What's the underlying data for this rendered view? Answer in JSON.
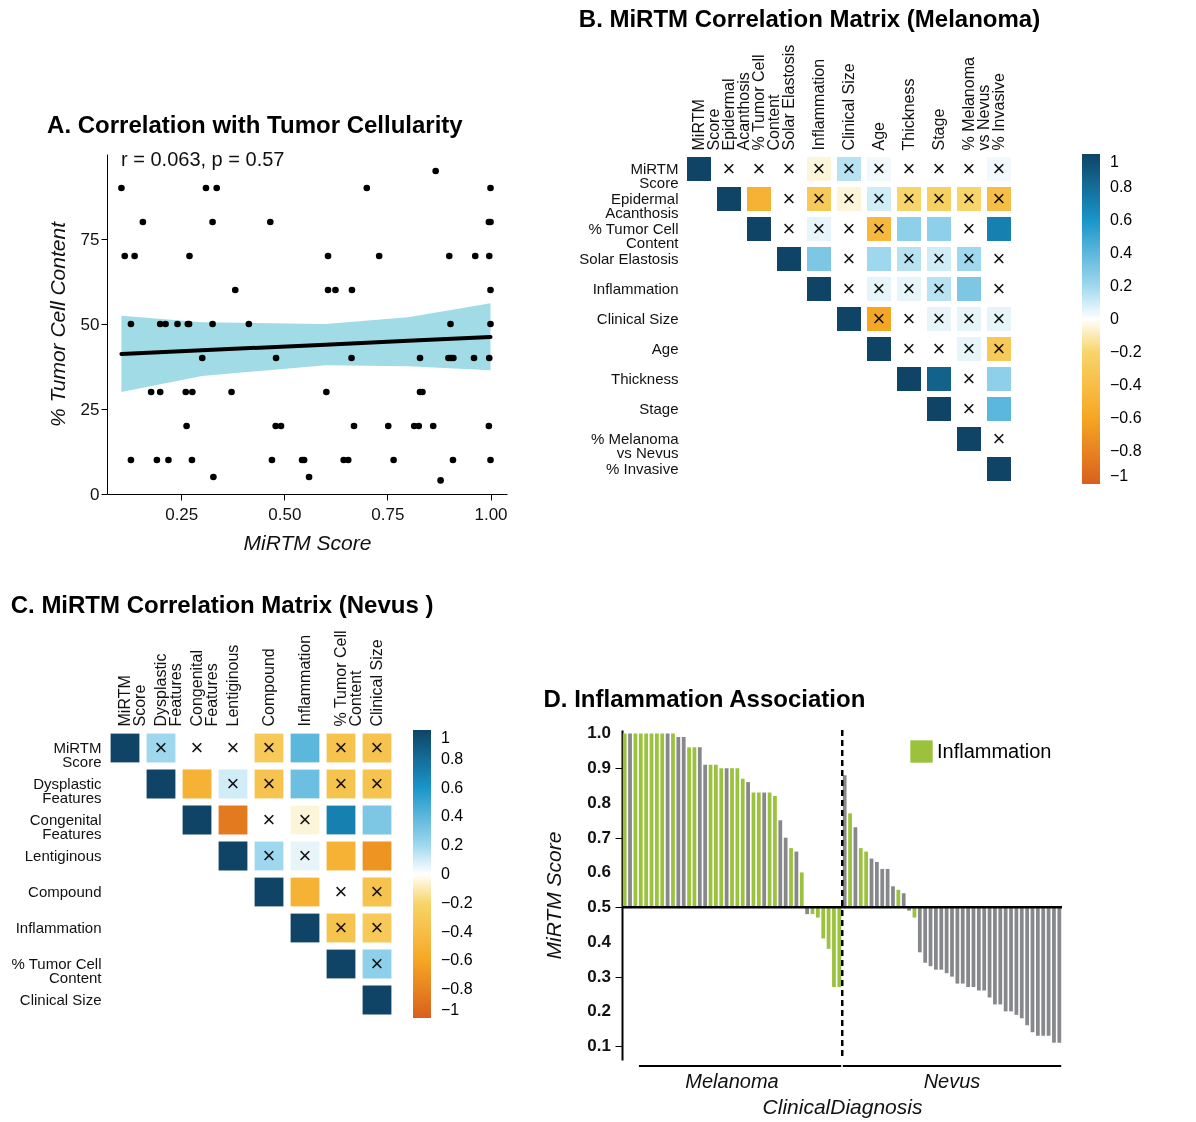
{
  "chart_data": [
    {
      "type": "scatter",
      "title": "A. Correlation with Tumor Cellularity",
      "xlabel": "MiRTM Score",
      "ylabel": "% Tumor Cell Content",
      "annotations": [
        "r = 0.063, p = 0.57"
      ],
      "xlim": [
        0.07,
        1.04
      ],
      "ylim": [
        0,
        100
      ],
      "xticks": [
        0.25,
        {
          "value": 0.5,
          "label": "0.50"
        },
        0.75,
        {
          "value": 1,
          "label": "1.00"
        }
      ],
      "yticks": [
        0,
        25,
        50,
        75
      ],
      "series": [
        {
          "type": "scatter",
          "color": "#000000",
          "marker": "circle",
          "x": [
            0.105,
            0.31,
            0.336,
            0.7,
            1.0,
            0.867,
            0.157,
            0.326,
            0.466,
            0.996,
            1.0,
            0.113,
            0.137,
            0.27,
            0.606,
            0.73,
            0.9,
            0.963,
            0.997,
            0.381,
            0.606,
            0.624,
            0.664,
            1.0,
            0.128,
            0.199,
            0.212,
            0.241,
            0.266,
            0.269,
            0.326,
            0.414,
            0.903,
            1.0,
            0.301,
            0.48,
            0.663,
            0.829,
            0.898,
            0.904,
            0.91,
            0.96,
            0.997,
            0.177,
            0.199,
            0.261,
            0.277,
            0.372,
            0.602,
            0.829,
            0.835,
            0.263,
            0.479,
            0.492,
            0.669,
            0.752,
            0.815,
            0.826,
            0.861,
            0.996,
            0.128,
            0.191,
            0.219,
            0.276,
            0.47,
            0.543,
            0.548,
            0.644,
            0.655,
            0.765,
            0.909,
            1.0,
            0.328,
            0.56,
            0.879
          ],
          "values": [
            90,
            90,
            90,
            90,
            90,
            95,
            80,
            80,
            80,
            80,
            80,
            70,
            70,
            70,
            70,
            70,
            70,
            70,
            70,
            60,
            60,
            60,
            60,
            60,
            50,
            50,
            50,
            50,
            50,
            50,
            50,
            50,
            50,
            50,
            40,
            40,
            40,
            40,
            40,
            40,
            40,
            40,
            40,
            30,
            30,
            30,
            30,
            30,
            30,
            30,
            30,
            20,
            20,
            20,
            20,
            20,
            20,
            20,
            20,
            20,
            10,
            10,
            10,
            10,
            10,
            10,
            10,
            10,
            10,
            10,
            10,
            10,
            5,
            5,
            4
          ]
        },
        {
          "type": "line",
          "color": "#000000",
          "x": [
            0.105,
            0.3,
            0.6,
            0.8,
            1.0
          ],
          "values": [
            41.2,
            42.3,
            43.9,
            45.1,
            46.2
          ],
          "lower": [
            30,
            34.7,
            37.9,
            37.6,
            36.4
          ],
          "upper": [
            52.4,
            50.5,
            50,
            52,
            56.1
          ]
        }
      ]
    },
    {
      "type": "heatmap",
      "title": "B. MiRTM Correlation Matrix (Melanoma)",
      "categories": [
        "MiRTM\nScore",
        "Epidermal\nAcanthosis",
        "% Tumor Cell\nContent",
        "Solar Elastosis",
        "Inflammation",
        "Clinical Size",
        "Age",
        "Thickness",
        "Stage",
        "% Melanoma\nvs Nevus",
        "% Invasive"
      ],
      "y_categories": [
        "MiRTM\nScore",
        "Epidermal\nAcanthosis",
        "% Tumor Cell\nContent",
        "Solar Elastosis",
        "Inflammation",
        "Clinical Size",
        "Age",
        "Thickness",
        "Stage",
        "% Melanoma\nvs Nevus",
        "% Invasive"
      ],
      "clim": [
        -1,
        1
      ],
      "cticks": [
        1,
        0.8,
        0.6,
        0.4,
        0.2,
        0,
        {
          "value": -0.2,
          "label": "−0.2"
        },
        {
          "value": -0.4,
          "label": "−0.4"
        },
        {
          "value": -0.6,
          "label": "−0.6"
        },
        {
          "value": -0.8,
          "label": "−0.8"
        },
        {
          "value": -1,
          "label": "−1"
        }
      ],
      "cells": [
        [
          1,
          0,
          0,
          0,
          -0.05,
          0.15,
          0.03,
          0,
          0,
          0,
          0.03
        ],
        [
          null,
          1,
          -0.5,
          0,
          -0.3,
          -0.05,
          0.1,
          -0.2,
          -0.25,
          -0.2,
          -0.4
        ],
        [
          null,
          null,
          1,
          0,
          0.05,
          0,
          -0.45,
          0.25,
          0.25,
          0,
          0.7
        ],
        [
          null,
          null,
          null,
          1,
          0.3,
          0,
          0.2,
          0.15,
          0.1,
          0.2,
          0
        ],
        [
          null,
          null,
          null,
          null,
          1,
          0,
          0.05,
          0.05,
          0.15,
          0.3,
          0
        ],
        [
          null,
          null,
          null,
          null,
          null,
          1,
          -0.6,
          0,
          0.05,
          0.05,
          0.05
        ],
        [
          null,
          null,
          null,
          null,
          null,
          null,
          1,
          0,
          0,
          0.05,
          -0.3
        ],
        [
          null,
          null,
          null,
          null,
          null,
          null,
          null,
          1,
          0.85,
          0,
          0.25
        ],
        [
          null,
          null,
          null,
          null,
          null,
          null,
          null,
          null,
          1,
          0,
          0.4
        ],
        [
          null,
          null,
          null,
          null,
          null,
          null,
          null,
          null,
          null,
          1,
          0
        ],
        [
          null,
          null,
          null,
          null,
          null,
          null,
          null,
          null,
          null,
          null,
          1
        ]
      ],
      "cell_labels": [
        [
          null,
          "×",
          "×",
          "×",
          "×",
          "×",
          "×",
          "×",
          "×",
          "×",
          "×"
        ],
        [
          null,
          null,
          null,
          "×",
          "×",
          "×",
          "×",
          "×",
          "×",
          "×",
          "×"
        ],
        [
          null,
          null,
          null,
          "×",
          "×",
          "×",
          "×",
          null,
          null,
          "×",
          null
        ],
        [
          null,
          null,
          null,
          null,
          null,
          "×",
          null,
          "×",
          "×",
          "×",
          "×"
        ],
        [
          null,
          null,
          null,
          null,
          null,
          "×",
          "×",
          "×",
          "×",
          null,
          "×"
        ],
        [
          null,
          null,
          null,
          null,
          null,
          null,
          "×",
          "×",
          "×",
          "×",
          "×"
        ],
        [
          null,
          null,
          null,
          null,
          null,
          null,
          null,
          "×",
          "×",
          "×",
          "×"
        ],
        [
          null,
          null,
          null,
          null,
          null,
          null,
          null,
          null,
          null,
          "×",
          null
        ],
        [
          null,
          null,
          null,
          null,
          null,
          null,
          null,
          null,
          null,
          "×",
          null
        ],
        [
          null,
          null,
          null,
          null,
          null,
          null,
          null,
          null,
          null,
          null,
          "×"
        ],
        [
          null,
          null,
          null,
          null,
          null,
          null,
          null,
          null,
          null,
          null,
          null
        ]
      ]
    },
    {
      "type": "heatmap",
      "title": "C. MiRTM Correlation Matrix (Nevus )",
      "categories": [
        "MiRTM\nScore",
        "Dysplastic\nFeatures",
        "Congenital\nFeatures",
        "Lentiginous",
        "Compound",
        "Inflammation",
        "% Tumor Cell\nContent",
        "Clinical Size"
      ],
      "y_categories": [
        "MiRTM\nScore",
        "Dysplastic\nFeatures",
        "Congenital\nFeatures",
        "Lentiginous",
        "Compound",
        "Inflammation",
        "% Tumor Cell\nContent",
        "Clinical Size"
      ],
      "clim": [
        -1,
        1
      ],
      "cticks": [
        1,
        0.8,
        0.6,
        0.4,
        0.2,
        0,
        {
          "value": -0.2,
          "label": "−0.2"
        },
        {
          "value": -0.4,
          "label": "−0.4"
        },
        {
          "value": -0.6,
          "label": "−0.6"
        },
        {
          "value": -0.8,
          "label": "−0.8"
        },
        {
          "value": -1,
          "label": "−1"
        }
      ],
      "cells": [
        [
          1,
          0.2,
          0,
          0,
          -0.3,
          0.4,
          -0.35,
          -0.35
        ],
        [
          null,
          1,
          -0.5,
          0.1,
          -0.35,
          0.35,
          -0.35,
          -0.35
        ],
        [
          null,
          null,
          1,
          -0.85,
          0,
          -0.05,
          0.7,
          0.3
        ],
        [
          null,
          null,
          null,
          1,
          0.2,
          0.05,
          -0.5,
          -0.7
        ],
        [
          null,
          null,
          null,
          null,
          1,
          -0.5,
          0,
          -0.35
        ],
        [
          null,
          null,
          null,
          null,
          null,
          1,
          -0.35,
          -0.3
        ],
        [
          null,
          null,
          null,
          null,
          null,
          null,
          1,
          0.25
        ],
        [
          null,
          null,
          null,
          null,
          null,
          null,
          null,
          1
        ]
      ],
      "cell_labels": [
        [
          null,
          "×",
          "×",
          "×",
          "×",
          null,
          "×",
          "×"
        ],
        [
          null,
          null,
          null,
          "×",
          "×",
          null,
          "×",
          "×"
        ],
        [
          null,
          null,
          null,
          null,
          "×",
          "×",
          null,
          null
        ],
        [
          null,
          null,
          null,
          null,
          "×",
          "×",
          null,
          null
        ],
        [
          null,
          null,
          null,
          null,
          null,
          null,
          "×",
          "×"
        ],
        [
          null,
          null,
          null,
          null,
          null,
          null,
          "×",
          "×"
        ],
        [
          null,
          null,
          null,
          null,
          null,
          null,
          null,
          "×"
        ],
        [
          null,
          null,
          null,
          null,
          null,
          null,
          null,
          null
        ]
      ]
    },
    {
      "type": "bar",
      "title": "D.  Inflammation Association",
      "xlabel": "ClinicalDiagnosis",
      "ylabel": "MiRTM Score",
      "annotations": [
        "Melanoma",
        "Nevus"
      ],
      "ylim": [
        0.06,
        1.01
      ],
      "yticks": [
        0.1,
        0.2,
        0.3,
        0.4,
        0.5,
        0.6,
        0.7,
        0.8,
        0.9,
        {
          "value": 1,
          "label": "1.0"
        }
      ],
      "legend": "top right",
      "categories": [
        null,
        null,
        null,
        null,
        null,
        null,
        null,
        null,
        null,
        null,
        null,
        null,
        null,
        null,
        null,
        null,
        null,
        null,
        null,
        null,
        null,
        null,
        null,
        null,
        null,
        null,
        null,
        null,
        null,
        null,
        null,
        null,
        null,
        null,
        null,
        null,
        null,
        null,
        null,
        null,
        null,
        null,
        null,
        null,
        null,
        null,
        null,
        null,
        null,
        null,
        null,
        null,
        null,
        null,
        null,
        null,
        null,
        null,
        null,
        null,
        null,
        null,
        null,
        null,
        null,
        null,
        null,
        null,
        null,
        null,
        null,
        null,
        null,
        null,
        null,
        null,
        null,
        null,
        null,
        null,
        null,
        null
      ],
      "ref_lines": [
        {
          "axis": "y",
          "value": 0.5
        }
      ],
      "series": [
        {
          "name": "Inflammation",
          "color": "#9bc23c",
          "base": [
            0.5,
            null,
            0.5,
            0.5,
            0.5,
            0.5,
            0.5,
            0.5,
            null,
            0.5,
            null,
            null,
            0.5,
            0.5,
            null,
            null,
            0.5,
            0.5,
            0.5,
            null,
            0.5,
            0.5,
            0.5,
            null,
            0.5,
            0.5,
            null,
            0.5,
            0.5,
            null,
            null,
            0.5,
            null,
            0.5,
            null,
            0.5,
            0.5,
            0.5,
            0.5,
            0.5,
            0.5,
            null,
            0.5,
            null,
            0.5,
            0.5,
            null,
            null,
            null,
            null,
            null,
            0.5,
            null,
            null,
            0.5,
            null,
            null,
            null,
            null,
            null,
            null,
            null,
            null,
            null,
            null,
            null,
            null,
            null,
            null,
            null,
            null,
            null,
            null,
            null,
            null,
            null,
            null,
            null,
            null,
            null,
            null,
            null
          ],
          "values": [
            0.5,
            null,
            0.5,
            0.5,
            0.5,
            0.5,
            0.5,
            0.5,
            null,
            0.5,
            null,
            null,
            0.46,
            0.46,
            null,
            null,
            0.41,
            0.41,
            0.4,
            null,
            0.4,
            0.4,
            0.37,
            null,
            0.33,
            0.33,
            null,
            0.33,
            0.32,
            null,
            null,
            0.17,
            null,
            0.1,
            null,
            -0.02,
            -0.03,
            -0.09,
            -0.12,
            -0.23,
            -0.23,
            null,
            0.27,
            null,
            0.17,
            0.16,
            null,
            null,
            null,
            null,
            null,
            0.05,
            null,
            null,
            -0.03,
            null,
            null,
            null,
            null,
            null,
            null,
            null,
            null,
            null,
            null,
            null,
            null,
            null,
            null,
            null,
            null,
            null,
            null,
            null,
            null,
            null,
            null,
            null,
            null,
            null,
            null,
            null
          ]
        },
        {
          "color": "#87888b",
          "base": [
            null,
            0.5,
            null,
            null,
            null,
            null,
            null,
            null,
            0.5,
            null,
            0.5,
            0.5,
            null,
            null,
            0.5,
            0.5,
            null,
            null,
            null,
            0.5,
            null,
            null,
            null,
            0.5,
            null,
            null,
            0.5,
            null,
            null,
            0.5,
            0.5,
            null,
            0.5,
            null,
            0.5,
            null,
            null,
            null,
            null,
            null,
            null,
            0.5,
            null,
            0.5,
            null,
            null,
            0.5,
            0.5,
            0.5,
            0.5,
            0.5,
            null,
            0.5,
            0.5,
            null,
            0.5,
            0.5,
            0.5,
            0.5,
            0.5,
            0.5,
            0.5,
            0.5,
            0.5,
            0.5,
            0.5,
            0.5,
            0.5,
            0.5,
            0.5,
            0.5,
            0.5,
            0.5,
            0.5,
            0.5,
            0.5,
            0.5,
            0.5,
            0.5,
            0.5,
            0.5,
            0.5
          ],
          "values": [
            null,
            0.5,
            null,
            null,
            null,
            null,
            null,
            null,
            0.5,
            null,
            0.49,
            0.49,
            null,
            null,
            0.46,
            0.41,
            null,
            null,
            null,
            0.4,
            null,
            null,
            null,
            0.36,
            null,
            null,
            0.33,
            null,
            null,
            0.25,
            0.2,
            null,
            0.16,
            null,
            -0.02,
            null,
            null,
            null,
            null,
            null,
            null,
            0.38,
            null,
            0.23,
            null,
            null,
            0.14,
            0.13,
            0.11,
            0.11,
            0.06,
            null,
            0.04,
            -0.01,
            null,
            -0.13,
            -0.16,
            -0.17,
            -0.18,
            -0.18,
            -0.19,
            -0.2,
            -0.22,
            -0.22,
            -0.23,
            -0.23,
            -0.24,
            -0.24,
            -0.26,
            -0.28,
            -0.28,
            -0.3,
            -0.3,
            -0.31,
            -0.32,
            -0.34,
            -0.36,
            -0.37,
            -0.37,
            -0.37,
            -0.39,
            -0.39
          ]
        }
      ]
    }
  ]
}
